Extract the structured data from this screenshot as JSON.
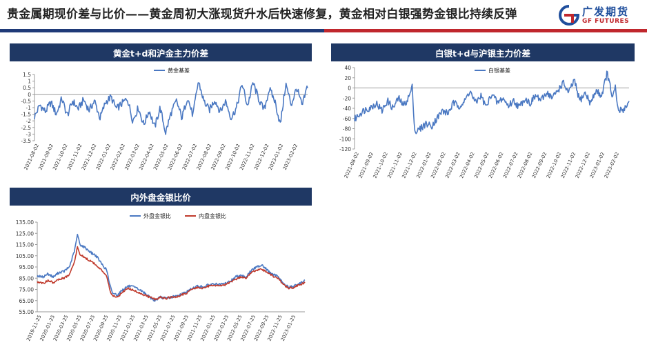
{
  "page": {
    "title": "贵金属期现价差与比价——黄金周初大涨现货升水后快速修复，黄金相对白银强势金银比持续反弹",
    "logo_cn": "广发期货",
    "logo_en": "GF FUTURES",
    "colors": {
      "navy": "#1f3864",
      "brand_blue": "#1f4e9c",
      "brand_red": "#c0272d",
      "series_blue": "#4a78c2",
      "series_red": "#c0392b"
    }
  },
  "panels": {
    "gold": {
      "header": "黄金t+d和沪金主力价差"
    },
    "silver": {
      "header": "白银t+d与沪银主力价差"
    },
    "ratio": {
      "header": "内外盘金银比价"
    }
  },
  "chart_data": [
    {
      "id": "gold",
      "type": "line",
      "title": "黄金t+d和沪金主力价差",
      "series": [
        {
          "name": "黄金基差",
          "color": "#4a78c2",
          "anchors": [
            [
              0,
              -1.7
            ],
            [
              0.02,
              -0.8
            ],
            [
              0.04,
              -1.3
            ],
            [
              0.06,
              -0.6
            ],
            [
              0.08,
              -1.5
            ],
            [
              0.1,
              -0.3
            ],
            [
              0.12,
              -1.6
            ],
            [
              0.14,
              -0.5
            ],
            [
              0.16,
              -1.1
            ],
            [
              0.18,
              -0.4
            ],
            [
              0.2,
              -1.2
            ],
            [
              0.22,
              -0.5
            ],
            [
              0.24,
              -1.8
            ],
            [
              0.26,
              -0.6
            ],
            [
              0.28,
              -0.2
            ],
            [
              0.3,
              -1.1
            ],
            [
              0.32,
              -0.7
            ],
            [
              0.34,
              -0.3
            ],
            [
              0.36,
              -2.0
            ],
            [
              0.38,
              -1.0
            ],
            [
              0.4,
              -2.3
            ],
            [
              0.42,
              -1.2
            ],
            [
              0.44,
              -2.5
            ],
            [
              0.46,
              -1.0
            ],
            [
              0.48,
              -2.9
            ],
            [
              0.5,
              -1.4
            ],
            [
              0.52,
              -0.5
            ],
            [
              0.54,
              -1.8
            ],
            [
              0.56,
              -0.2
            ],
            [
              0.58,
              -1.6
            ],
            [
              0.6,
              1.0
            ],
            [
              0.62,
              -0.5
            ],
            [
              0.64,
              -1.2
            ],
            [
              0.66,
              -0.4
            ],
            [
              0.68,
              -1.3
            ],
            [
              0.7,
              -0.5
            ],
            [
              0.72,
              -1.8
            ],
            [
              0.74,
              -1.0
            ],
            [
              0.76,
              0.8
            ],
            [
              0.78,
              -0.9
            ],
            [
              0.8,
              0.9
            ],
            [
              0.82,
              -0.3
            ],
            [
              0.84,
              -1.2
            ],
            [
              0.86,
              0.4
            ],
            [
              0.88,
              -0.5
            ],
            [
              0.9,
              -2.3
            ],
            [
              0.92,
              0.8
            ],
            [
              0.94,
              -0.8
            ],
            [
              0.96,
              0.5
            ],
            [
              0.98,
              -0.9
            ],
            [
              1,
              0.7
            ]
          ]
        }
      ],
      "x_ticks": [
        "2021-08-02",
        "2021-09-02",
        "2021-10-02",
        "2021-11-02",
        "2021-12-02",
        "2022-01-02",
        "2022-02-02",
        "2022-03-02",
        "2022-04-02",
        "2022-05-02",
        "2022-06-02",
        "2022-07-02",
        "2022-08-02",
        "2022-09-02",
        "2022-10-02",
        "2022-11-02",
        "2022-12-02",
        "2023-01-02",
        "2023-02-02"
      ],
      "y_ticks": [
        "1.5",
        "1",
        "0.5",
        "0",
        "-0.5",
        "-1",
        "-1.5",
        "-2",
        "-2.5",
        "-3",
        "-3.5"
      ],
      "ylim": [
        -3.5,
        1.5
      ],
      "legend": "top-center"
    },
    {
      "id": "silver",
      "type": "line",
      "title": "白银t+d与沪银主力价差",
      "series": [
        {
          "name": "白银基差",
          "color": "#4a78c2",
          "anchors": [
            [
              0,
              -62
            ],
            [
              0.02,
              -50
            ],
            [
              0.04,
              -42
            ],
            [
              0.06,
              -38
            ],
            [
              0.08,
              -30
            ],
            [
              0.1,
              -45
            ],
            [
              0.12,
              -25
            ],
            [
              0.14,
              -40
            ],
            [
              0.16,
              -20
            ],
            [
              0.18,
              -35
            ],
            [
              0.2,
              -15
            ],
            [
              0.21,
              2
            ],
            [
              0.22,
              -88
            ],
            [
              0.24,
              -80
            ],
            [
              0.26,
              -70
            ],
            [
              0.28,
              -75
            ],
            [
              0.3,
              -60
            ],
            [
              0.32,
              -45
            ],
            [
              0.34,
              -50
            ],
            [
              0.36,
              -30
            ],
            [
              0.38,
              -35
            ],
            [
              0.4,
              -28
            ],
            [
              0.42,
              -5
            ],
            [
              0.44,
              -30
            ],
            [
              0.46,
              -15
            ],
            [
              0.48,
              -38
            ],
            [
              0.5,
              -10
            ],
            [
              0.52,
              -30
            ],
            [
              0.54,
              -20
            ],
            [
              0.56,
              -35
            ],
            [
              0.58,
              -25
            ],
            [
              0.6,
              -38
            ],
            [
              0.62,
              -20
            ],
            [
              0.64,
              -30
            ],
            [
              0.66,
              -15
            ],
            [
              0.68,
              -25
            ],
            [
              0.7,
              -8
            ],
            [
              0.72,
              -20
            ],
            [
              0.74,
              -5
            ],
            [
              0.76,
              10
            ],
            [
              0.78,
              -10
            ],
            [
              0.8,
              15
            ],
            [
              0.82,
              -25
            ],
            [
              0.84,
              -10
            ],
            [
              0.86,
              -30
            ],
            [
              0.88,
              -5
            ],
            [
              0.9,
              -15
            ],
            [
              0.92,
              30
            ],
            [
              0.94,
              -20
            ],
            [
              0.95,
              0
            ],
            [
              0.96,
              -45
            ],
            [
              0.98,
              -42
            ],
            [
              1,
              -28
            ]
          ]
        }
      ],
      "x_ticks": [
        "2021-08-02",
        "2021-09-02",
        "2021-10-02",
        "2021-11-02",
        "2021-12-02",
        "2022-01-02",
        "2022-02-02",
        "2022-03-02",
        "2022-04-02",
        "2022-05-02",
        "2022-06-02",
        "2022-07-02",
        "2022-08-02",
        "2022-09-02",
        "2022-10-02",
        "2022-11-02",
        "2022-12-02",
        "2023-01-02",
        "2023-02-02"
      ],
      "y_ticks": [
        "40",
        "20",
        "0",
        "-20",
        "-40",
        "-60",
        "-80",
        "-100",
        "-120"
      ],
      "ylim": [
        -120,
        40
      ],
      "legend": "top-center"
    },
    {
      "id": "ratio",
      "type": "line",
      "title": "内外盘金银比价",
      "series": [
        {
          "name": "外盘金银比",
          "color": "#4a78c2",
          "anchors": [
            [
              0,
              87
            ],
            [
              0.02,
              86
            ],
            [
              0.04,
              89
            ],
            [
              0.06,
              86
            ],
            [
              0.08,
              90
            ],
            [
              0.1,
              91
            ],
            [
              0.12,
              95
            ],
            [
              0.14,
              110
            ],
            [
              0.15,
              124
            ],
            [
              0.16,
              115
            ],
            [
              0.18,
              112
            ],
            [
              0.2,
              108
            ],
            [
              0.22,
              105
            ],
            [
              0.24,
              98
            ],
            [
              0.26,
              92
            ],
            [
              0.27,
              80
            ],
            [
              0.28,
              72
            ],
            [
              0.3,
              70
            ],
            [
              0.32,
              75
            ],
            [
              0.34,
              78
            ],
            [
              0.36,
              77
            ],
            [
              0.38,
              75
            ],
            [
              0.4,
              72
            ],
            [
              0.42,
              68
            ],
            [
              0.44,
              65
            ],
            [
              0.46,
              68
            ],
            [
              0.48,
              67
            ],
            [
              0.5,
              68
            ],
            [
              0.52,
              69
            ],
            [
              0.54,
              71
            ],
            [
              0.56,
              73
            ],
            [
              0.58,
              76
            ],
            [
              0.6,
              78
            ],
            [
              0.62,
              77
            ],
            [
              0.64,
              79
            ],
            [
              0.66,
              80
            ],
            [
              0.68,
              79
            ],
            [
              0.7,
              80
            ],
            [
              0.72,
              82
            ],
            [
              0.74,
              86
            ],
            [
              0.76,
              88
            ],
            [
              0.78,
              86
            ],
            [
              0.8,
              92
            ],
            [
              0.82,
              95
            ],
            [
              0.84,
              97
            ],
            [
              0.86,
              92
            ],
            [
              0.88,
              88
            ],
            [
              0.9,
              87
            ],
            [
              0.92,
              80
            ],
            [
              0.94,
              77
            ],
            [
              0.96,
              78
            ],
            [
              0.98,
              80
            ],
            [
              1,
              83
            ]
          ]
        },
        {
          "name": "内盘金银比",
          "color": "#c0392b",
          "anchors": [
            [
              0,
              82
            ],
            [
              0.02,
              80
            ],
            [
              0.04,
              83
            ],
            [
              0.06,
              81
            ],
            [
              0.08,
              84
            ],
            [
              0.1,
              85
            ],
            [
              0.12,
              88
            ],
            [
              0.14,
              100
            ],
            [
              0.15,
              113
            ],
            [
              0.16,
              106
            ],
            [
              0.18,
              103
            ],
            [
              0.2,
              100
            ],
            [
              0.22,
              97
            ],
            [
              0.24,
              92
            ],
            [
              0.26,
              87
            ],
            [
              0.27,
              76
            ],
            [
              0.28,
              69
            ],
            [
              0.3,
              68
            ],
            [
              0.32,
              73
            ],
            [
              0.34,
              76
            ],
            [
              0.36,
              74
            ],
            [
              0.38,
              72
            ],
            [
              0.4,
              70
            ],
            [
              0.42,
              68
            ],
            [
              0.44,
              66
            ],
            [
              0.46,
              68
            ],
            [
              0.48,
              67
            ],
            [
              0.5,
              68
            ],
            [
              0.52,
              68
            ],
            [
              0.54,
              70
            ],
            [
              0.56,
              72
            ],
            [
              0.58,
              75
            ],
            [
              0.6,
              77
            ],
            [
              0.62,
              76
            ],
            [
              0.64,
              78
            ],
            [
              0.66,
              79
            ],
            [
              0.68,
              78
            ],
            [
              0.7,
              79
            ],
            [
              0.72,
              81
            ],
            [
              0.74,
              84
            ],
            [
              0.76,
              86
            ],
            [
              0.78,
              85
            ],
            [
              0.8,
              90
            ],
            [
              0.82,
              92
            ],
            [
              0.84,
              93
            ],
            [
              0.86,
              90
            ],
            [
              0.88,
              87
            ],
            [
              0.9,
              85
            ],
            [
              0.92,
              79
            ],
            [
              0.94,
              76
            ],
            [
              0.96,
              77
            ],
            [
              0.98,
              79
            ],
            [
              1,
              81
            ]
          ]
        }
      ],
      "x_ticks": [
        "2019-11-25",
        "2020-01-25",
        "2020-03-25",
        "2020-05-25",
        "2020-07-25",
        "2020-09-25",
        "2020-11-25",
        "2021-01-25",
        "2021-03-25",
        "2021-05-25",
        "2021-07-25",
        "2021-09-25",
        "2021-11-25",
        "2022-01-25",
        "2022-03-25",
        "2022-05-25",
        "2022-07-25",
        "2022-09-25",
        "2022-11-25",
        "2023-01-25"
      ],
      "y_ticks": [
        "135.00",
        "125.00",
        "115.00",
        "105.00",
        "95.00",
        "85.00",
        "75.00",
        "65.00",
        "55.00"
      ],
      "ylim": [
        55,
        135
      ],
      "legend": "top-center"
    }
  ]
}
